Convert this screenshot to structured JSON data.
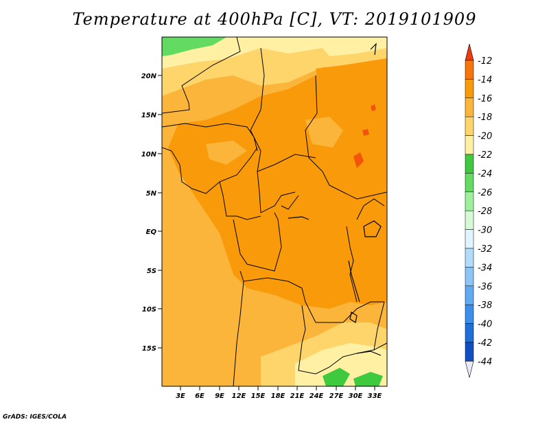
{
  "title": "Temperature at 400hPa [C], VT: 2019101909",
  "credit": "GrADS: IGES/COLA",
  "axes": {
    "lat_labels": [
      "20N",
      "15N",
      "10N",
      "5N",
      "EQ",
      "5S",
      "10S",
      "15S"
    ],
    "lon_labels": [
      "3E",
      "6E",
      "9E",
      "12E",
      "15E",
      "18E",
      "21E",
      "24E",
      "27E",
      "30E",
      "33E"
    ]
  },
  "colorbar": {
    "labels": [
      "-12",
      "-14",
      "-16",
      "-18",
      "-20",
      "-22",
      "-24",
      "-26",
      "-28",
      "-30",
      "-32",
      "-34",
      "-36",
      "-38",
      "-40",
      "-42",
      "-44"
    ],
    "colors": [
      "#f4530c",
      "#f7750a",
      "#f99a0a",
      "#fbb53a",
      "#fdd56a",
      "#fff0a4",
      "#3fc93f",
      "#63db63",
      "#9ef09e",
      "#d6f9d6",
      "#e2f4ff",
      "#b3dcfb",
      "#8cc6f7",
      "#5faaf1",
      "#3a8fea",
      "#1f6fd9",
      "#0f4fc2",
      "#0a2f9a"
    ],
    "top_color": "#ef3b0e",
    "bottom_color": "#e8e8f8"
  },
  "map_colors": {
    "c12": "#f4530c",
    "c14": "#f99a0a",
    "c16": "#fbb53a",
    "c18": "#fdd56a",
    "c20": "#fff0a4",
    "c22": "#3fc93f",
    "c24": "#63db63",
    "border": "#000000"
  }
}
